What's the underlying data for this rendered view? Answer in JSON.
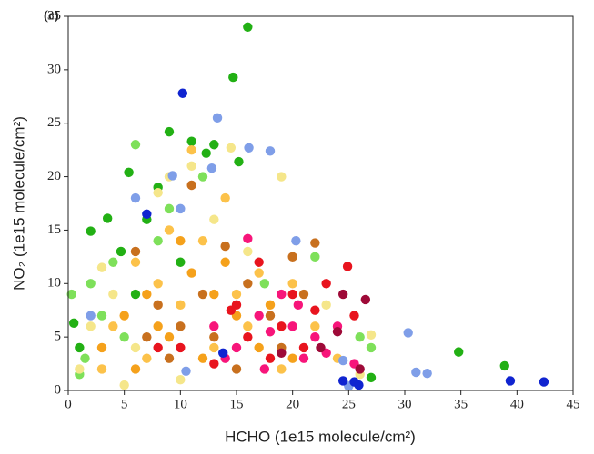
{
  "chart_data": {
    "type": "scatter",
    "title": "(c)",
    "x_label": "HCHO (1e15 molecule/cm²)",
    "y_label": "NO₂ (1e15 molecule/cm²)",
    "xlim": [
      0,
      45
    ],
    "ylim": [
      0,
      35
    ],
    "xticks": [
      0,
      5,
      10,
      15,
      20,
      25,
      30,
      35,
      40,
      45
    ],
    "yticks": [
      0,
      5,
      10,
      15,
      20,
      25,
      30,
      35
    ],
    "series": [
      {
        "color": "#22b014",
        "x": [
          14.7,
          16,
          9,
          11,
          13,
          12.3,
          15.2,
          5.4,
          8,
          2,
          3.5,
          0.5,
          1,
          4.7,
          7,
          27,
          34.8,
          38.9,
          10,
          6
        ],
        "values": [
          29.3,
          34,
          24.2,
          23.3,
          23,
          22.2,
          21.4,
          20.4,
          19,
          14.9,
          16.1,
          6.3,
          4,
          13,
          16,
          1.2,
          3.6,
          2.3,
          12,
          9
        ]
      },
      {
        "color": "#7ee05a",
        "x": [
          6,
          4,
          3,
          1.5,
          9,
          12,
          17.5,
          22,
          26,
          27,
          2,
          5,
          8,
          0.3,
          1
        ],
        "values": [
          23,
          12,
          7,
          3,
          17,
          20,
          10,
          12.5,
          5,
          4,
          10,
          5,
          14,
          9,
          1.5
        ]
      },
      {
        "color": "#f5e68a",
        "x": [
          3,
          1,
          4,
          8,
          11,
          14.5,
          19,
          9,
          26,
          27,
          23,
          6,
          2,
          13,
          16,
          5,
          10
        ],
        "values": [
          11.5,
          2,
          9,
          18.5,
          21,
          22.7,
          20,
          20,
          1.5,
          5.2,
          8,
          4,
          6,
          16,
          13,
          0.5,
          1
        ]
      },
      {
        "color": "#fcc24a",
        "x": [
          6,
          9,
          12,
          14,
          17,
          20,
          22,
          4,
          7,
          10,
          13,
          16,
          3,
          8,
          11,
          24,
          19,
          15
        ],
        "values": [
          12,
          15,
          14,
          18,
          11,
          10,
          6,
          6,
          3,
          8,
          4,
          6,
          2,
          10,
          22.5,
          3,
          2,
          9
        ]
      },
      {
        "color": "#f5a11b",
        "x": [
          5,
          7,
          9,
          11,
          13,
          15,
          17,
          6,
          8,
          10,
          12,
          14,
          3,
          18,
          20
        ],
        "values": [
          7,
          9,
          5,
          11,
          9,
          7,
          4,
          2,
          6,
          14,
          3,
          12,
          4,
          8,
          3
        ]
      },
      {
        "color": "#c8701e",
        "x": [
          6,
          8,
          10,
          12,
          14,
          16,
          18,
          20,
          22,
          9,
          13,
          15,
          11,
          7,
          21,
          19
        ],
        "values": [
          13,
          8,
          6,
          9,
          13.5,
          10,
          7,
          12.5,
          13.8,
          3,
          5,
          2,
          19.2,
          5,
          9,
          4
        ]
      },
      {
        "color": "#e8141e",
        "x": [
          10,
          13,
          15,
          17,
          19,
          21,
          23,
          24.9,
          25.5,
          22,
          18,
          20,
          16,
          14.5,
          8
        ],
        "values": [
          4,
          2.5,
          8,
          12,
          6,
          4,
          10,
          11.6,
          7,
          7.5,
          3,
          9,
          5,
          7.5,
          4
        ]
      },
      {
        "color": "#f7157a",
        "x": [
          13,
          15,
          16,
          17,
          18,
          19,
          20,
          21,
          22,
          23,
          24,
          14,
          17.5,
          20.5,
          25.5
        ],
        "values": [
          6,
          4,
          14.2,
          7,
          5.5,
          9,
          6,
          3,
          5,
          3.5,
          6,
          3,
          2,
          8,
          2.5
        ]
      },
      {
        "color": "#9e0a38",
        "x": [
          26.5,
          26,
          24,
          22.5,
          19,
          24.5
        ],
        "values": [
          8.5,
          2,
          5.5,
          4,
          3.5,
          9
        ]
      },
      {
        "color": "#7f9ee8",
        "x": [
          10,
          13.3,
          16.1,
          18,
          12.8,
          9.3,
          20.3,
          6,
          2,
          30.3,
          31,
          32,
          24.5,
          25,
          10.5
        ],
        "values": [
          17,
          25.5,
          22.7,
          22.4,
          20.8,
          20.1,
          14,
          18,
          7,
          5.4,
          1.7,
          1.6,
          2.8,
          0.4,
          1.8
        ]
      },
      {
        "color": "#1024d0",
        "x": [
          10.2,
          39.4,
          42.4,
          25.9,
          25.5,
          24.5,
          7,
          13.8
        ],
        "values": [
          27.8,
          0.9,
          0.8,
          0.5,
          0.8,
          0.9,
          16.5,
          3.5
        ]
      }
    ]
  }
}
